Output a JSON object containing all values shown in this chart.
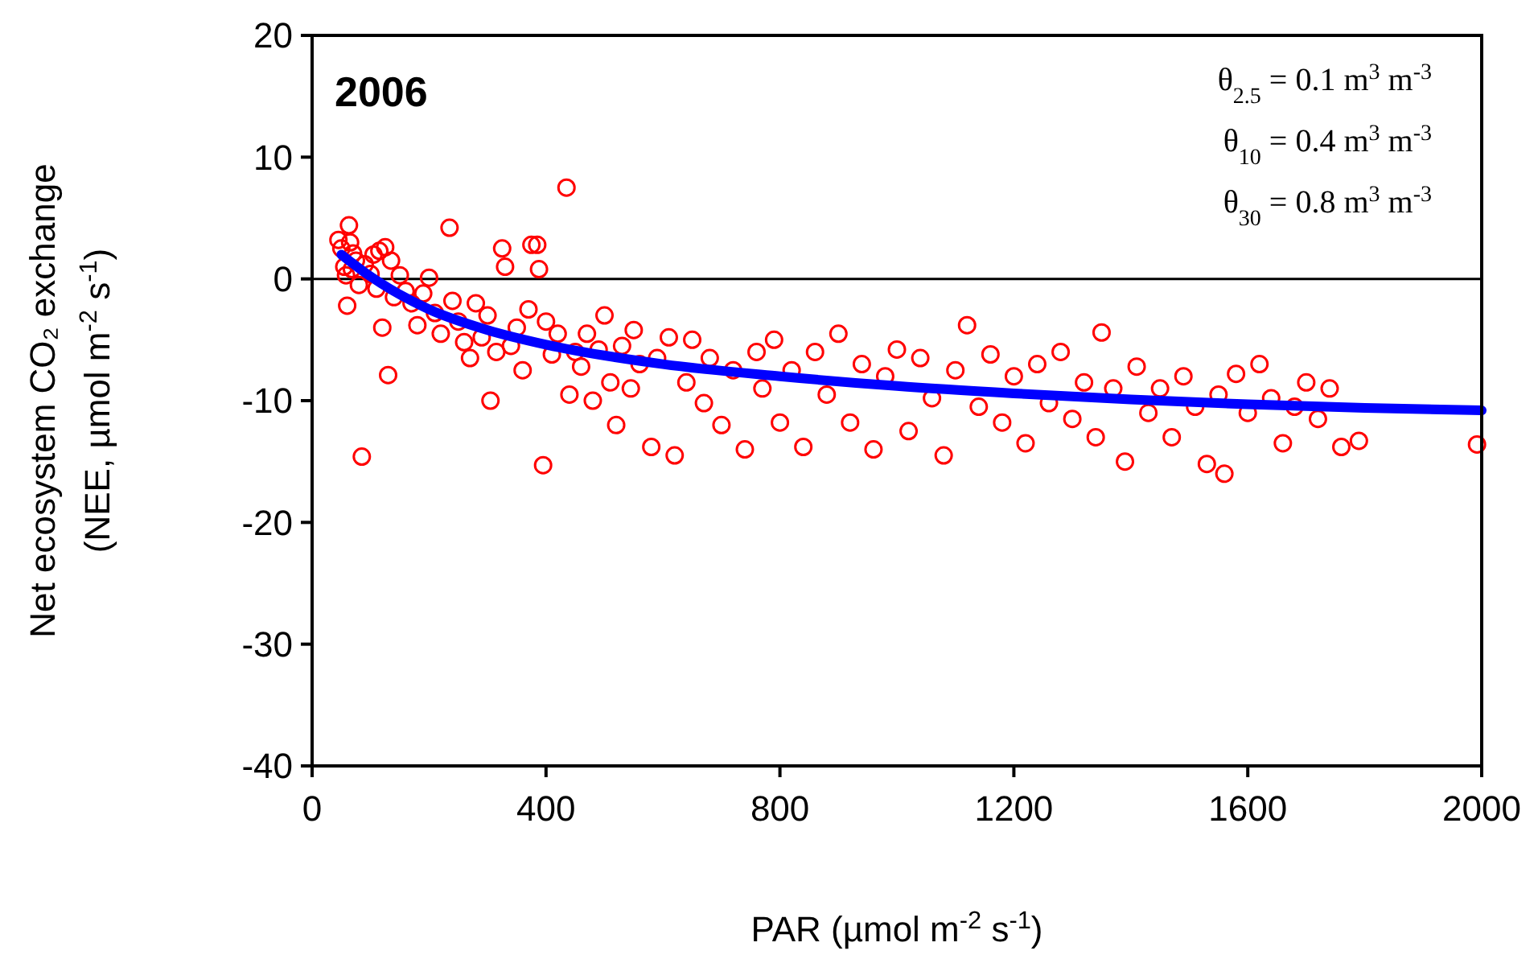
{
  "chart_data": {
    "type": "scatter",
    "xlabel": "PAR (µmol m$^{-2}$ s$^{-1}$)",
    "ylabel": "Net ecosystem CO₂ exchange\n(NEE, µmol m$^{-2}$ s$^{-1}$)",
    "xlim": [
      0,
      2000
    ],
    "xticks": [
      0,
      400,
      800,
      1200,
      1600,
      2000
    ],
    "ylim": [
      -40,
      20
    ],
    "yticks": [
      -40,
      -30,
      -20,
      -10,
      0,
      10,
      20
    ],
    "grid": false,
    "ref_lines": [
      {
        "axis": "y",
        "value": 0,
        "color": "#000000"
      }
    ],
    "annotations": [
      "2006",
      "θ$_{2.5}$ = 0.1 m$^{3}$ m$^{-3}$",
      "θ$_{10}$ = 0.4 m$^{3}$ m$^{-3}$",
      "θ$_{30}$ = 0.8 m$^{3}$ m$^{-3}$"
    ],
    "series": [
      {
        "color": "#ff0000",
        "marker": "circle",
        "x": [
          45,
          50,
          55,
          58,
          60,
          63,
          65,
          68,
          70,
          75,
          80,
          85,
          90,
          100,
          105,
          110,
          115,
          120,
          125,
          130,
          135,
          140,
          150,
          160,
          170,
          180,
          190,
          200,
          210,
          220,
          235,
          240,
          250,
          260,
          270,
          280,
          290,
          300,
          305,
          315,
          325,
          330,
          340,
          350,
          360,
          370,
          375,
          385,
          388,
          395,
          400,
          410,
          420,
          435,
          440,
          450,
          460,
          470,
          480,
          490,
          500,
          510,
          520,
          530,
          545,
          550,
          560,
          580,
          590,
          610,
          620,
          640,
          650,
          670,
          680,
          700,
          720,
          740,
          760,
          770,
          790,
          800,
          820,
          840,
          860,
          880,
          900,
          920,
          940,
          960,
          980,
          1000,
          1020,
          1040,
          1060,
          1080,
          1100,
          1120,
          1140,
          1160,
          1180,
          1200,
          1220,
          1240,
          1260,
          1280,
          1300,
          1320,
          1340,
          1350,
          1370,
          1390,
          1410,
          1430,
          1450,
          1470,
          1490,
          1510,
          1530,
          1550,
          1560,
          1580,
          1600,
          1620,
          1640,
          1660,
          1680,
          1700,
          1720,
          1740,
          1760,
          1790,
          1992
        ],
        "values": [
          3.2,
          2.5,
          1.0,
          0.3,
          -2.2,
          4.4,
          3.0,
          0.8,
          2.1,
          1.5,
          -0.5,
          -14.6,
          1.2,
          0.4,
          2.0,
          -0.8,
          2.3,
          -4.0,
          2.6,
          -7.9,
          1.5,
          -1.5,
          0.3,
          -1.0,
          -2.0,
          -3.8,
          -1.2,
          0.1,
          -2.8,
          -4.5,
          4.2,
          -1.8,
          -3.5,
          -5.2,
          -6.5,
          -2.0,
          -4.8,
          -3.0,
          -10.0,
          -6.0,
          2.5,
          1.0,
          -5.5,
          -4.0,
          -7.5,
          -2.5,
          2.8,
          2.8,
          0.8,
          -15.3,
          -3.5,
          -6.2,
          -4.5,
          7.5,
          -9.5,
          -6.0,
          -7.2,
          -4.5,
          -10.0,
          -5.8,
          -3.0,
          -8.5,
          -12.0,
          -5.5,
          -9.0,
          -4.2,
          -7.0,
          -13.8,
          -6.5,
          -4.8,
          -14.5,
          -8.5,
          -5.0,
          -10.2,
          -6.5,
          -12.0,
          -7.5,
          -14.0,
          -6.0,
          -9.0,
          -5.0,
          -11.8,
          -7.5,
          -13.8,
          -6.0,
          -9.5,
          -4.5,
          -11.8,
          -7.0,
          -14.0,
          -8.0,
          -5.8,
          -12.5,
          -6.5,
          -9.8,
          -14.5,
          -7.5,
          -3.8,
          -10.5,
          -6.2,
          -11.8,
          -8.0,
          -13.5,
          -7.0,
          -10.2,
          -6.0,
          -11.5,
          -8.5,
          -13.0,
          -4.4,
          -9.0,
          -15.0,
          -7.2,
          -11.0,
          -9.0,
          -13.0,
          -8.0,
          -10.5,
          -15.2,
          -9.5,
          -16.0,
          -7.8,
          -11.0,
          -7.0,
          -9.8,
          -13.5,
          -10.5,
          -8.5,
          -11.5,
          -9.0,
          -13.8,
          -13.3,
          -13.6
        ]
      },
      {
        "type": "line",
        "color": "#0000ff",
        "marker": "none",
        "x": [
          50,
          100,
          200,
          300,
          400,
          600,
          800,
          1000,
          1200,
          1400,
          1600,
          1800,
          2000
        ],
        "values": [
          2,
          0.2,
          -2.5,
          -4.2,
          -5.4,
          -7,
          -8,
          -8.8,
          -9.4,
          -9.9,
          -10.3,
          -10.6,
          -10.8
        ]
      }
    ]
  }
}
